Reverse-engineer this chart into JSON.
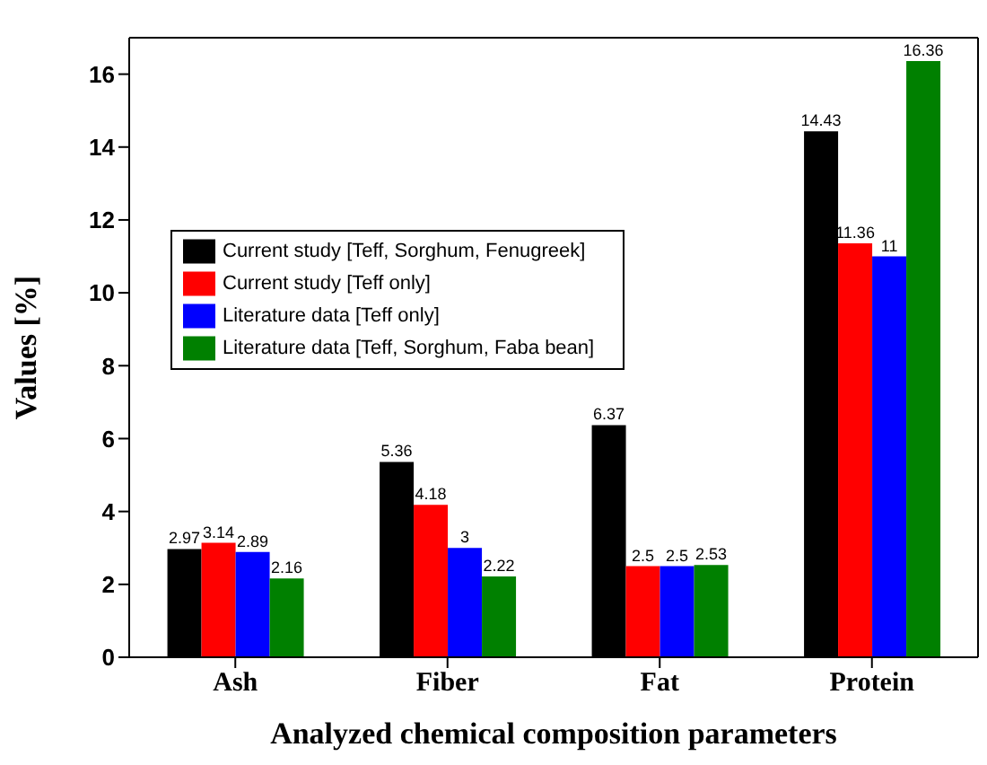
{
  "chart_data": {
    "type": "bar",
    "xlabel": "Analyzed chemical composition parameters",
    "ylabel": "Values [%]",
    "categories": [
      "Ash",
      "Fiber",
      "Fat",
      "Protein"
    ],
    "series": [
      {
        "name": "Current study [Teff, Sorghum, Fenugreek]",
        "color": "#000000",
        "values": [
          2.97,
          5.36,
          6.37,
          14.43
        ]
      },
      {
        "name": "Current study [Teff only]",
        "color": "#ff0000",
        "values": [
          3.14,
          4.18,
          2.5,
          11.36
        ]
      },
      {
        "name": "Literature data [Teff only]",
        "color": "#0000ff",
        "values": [
          2.89,
          3,
          2.5,
          11
        ]
      },
      {
        "name": "Literature data [Teff, Sorghum, Faba bean]",
        "color": "#008000",
        "values": [
          2.16,
          2.22,
          2.53,
          16.36
        ]
      }
    ],
    "ylim": [
      0,
      17
    ],
    "yticks": [
      0,
      2,
      4,
      6,
      8,
      10,
      12,
      14,
      16
    ],
    "grid": false,
    "legend": "top left",
    "data_labels": true
  }
}
